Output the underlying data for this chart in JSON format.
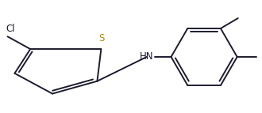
{
  "bg_color": "#ffffff",
  "line_color": "#1c1c2e",
  "s_color": "#b8860b",
  "bond_lw": 1.4,
  "figsize": [
    3.3,
    1.43
  ],
  "dpi": 100,
  "s_label": "S",
  "cl_label": "Cl",
  "hn_label": "HN"
}
